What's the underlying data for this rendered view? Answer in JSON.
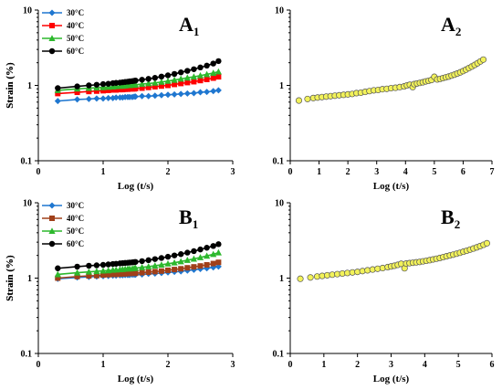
{
  "chart_data": [
    {
      "panel": "A1",
      "label": {
        "main": "A",
        "sub": "1"
      },
      "type": "line",
      "xlabel": "Log (t/s)",
      "ylabel": "Strain (%)",
      "xlim": [
        0,
        3
      ],
      "xticks": [
        0,
        1,
        2,
        3
      ],
      "ylim": [
        0.1,
        10
      ],
      "yscale": "log",
      "yticks": [
        0.1,
        1,
        10
      ],
      "legend": "top-left",
      "x": [
        0.3,
        0.6,
        0.78,
        0.9,
        1.0,
        1.08,
        1.15,
        1.2,
        1.26,
        1.3,
        1.34,
        1.38,
        1.41,
        1.45,
        1.48,
        1.5,
        1.6,
        1.7,
        1.8,
        1.9,
        2.0,
        2.1,
        2.2,
        2.3,
        2.4,
        2.5,
        2.6,
        2.7,
        2.78
      ],
      "series": [
        {
          "name": "30°C",
          "color": "#1f77d0",
          "marker": "diamond",
          "values": [
            0.62,
            0.65,
            0.66,
            0.67,
            0.67,
            0.68,
            0.68,
            0.69,
            0.69,
            0.69,
            0.7,
            0.7,
            0.7,
            0.7,
            0.71,
            0.71,
            0.72,
            0.72,
            0.73,
            0.74,
            0.75,
            0.76,
            0.77,
            0.78,
            0.79,
            0.81,
            0.82,
            0.84,
            0.86
          ]
        },
        {
          "name": "40°C",
          "color": "#ff0000",
          "marker": "square",
          "values": [
            0.78,
            0.81,
            0.83,
            0.84,
            0.85,
            0.86,
            0.87,
            0.87,
            0.88,
            0.88,
            0.89,
            0.89,
            0.9,
            0.9,
            0.9,
            0.91,
            0.92,
            0.94,
            0.96,
            0.98,
            1.0,
            1.03,
            1.06,
            1.09,
            1.12,
            1.16,
            1.2,
            1.25,
            1.3
          ]
        },
        {
          "name": "50°C",
          "color": "#2db82d",
          "marker": "triangle",
          "values": [
            0.86,
            0.9,
            0.92,
            0.93,
            0.94,
            0.95,
            0.96,
            0.97,
            0.98,
            0.98,
            0.99,
            1.0,
            1.0,
            1.01,
            1.01,
            1.02,
            1.04,
            1.06,
            1.08,
            1.11,
            1.14,
            1.18,
            1.22,
            1.26,
            1.3,
            1.35,
            1.4,
            1.46,
            1.52
          ]
        },
        {
          "name": "60°C",
          "color": "#000000",
          "marker": "circle",
          "values": [
            0.92,
            0.97,
            1.0,
            1.02,
            1.04,
            1.05,
            1.07,
            1.08,
            1.09,
            1.1,
            1.11,
            1.12,
            1.13,
            1.14,
            1.15,
            1.16,
            1.19,
            1.22,
            1.26,
            1.31,
            1.36,
            1.42,
            1.49,
            1.56,
            1.64,
            1.73,
            1.83,
            1.95,
            2.1
          ]
        }
      ]
    },
    {
      "panel": "A2",
      "label": {
        "main": "A",
        "sub": "2"
      },
      "type": "scatter",
      "xlabel": "Log (t/s)",
      "ylabel": "Strain (%)",
      "xlim": [
        0,
        7
      ],
      "xticks": [
        0,
        1,
        2,
        3,
        4,
        5,
        6,
        7
      ],
      "ylim": [
        0.1,
        10
      ],
      "yscale": "log",
      "yticks": [
        0.1,
        1,
        10
      ],
      "points": {
        "x": [
          0.3,
          0.6,
          0.8,
          0.95,
          1.1,
          1.25,
          1.4,
          1.55,
          1.7,
          1.85,
          2.0,
          2.15,
          2.3,
          2.45,
          2.6,
          2.75,
          2.9,
          3.05,
          3.2,
          3.35,
          3.5,
          3.65,
          3.8,
          3.95,
          4.05,
          4.15,
          4.25,
          4.3,
          4.4,
          4.5,
          4.6,
          4.7,
          4.8,
          4.9,
          5.0,
          5.1,
          5.2,
          5.3,
          5.4,
          5.5,
          5.6,
          5.7,
          5.8,
          5.9,
          6.0,
          6.1,
          6.2,
          6.3,
          6.4,
          6.5,
          6.6,
          6.7
        ],
        "y": [
          0.63,
          0.66,
          0.68,
          0.69,
          0.7,
          0.71,
          0.72,
          0.73,
          0.74,
          0.75,
          0.76,
          0.77,
          0.79,
          0.8,
          0.82,
          0.84,
          0.86,
          0.87,
          0.89,
          0.9,
          0.92,
          0.93,
          0.95,
          0.97,
          1.0,
          1.02,
          0.95,
          1.04,
          1.06,
          1.08,
          1.1,
          1.13,
          1.15,
          1.18,
          1.3,
          1.2,
          1.22,
          1.25,
          1.28,
          1.31,
          1.35,
          1.39,
          1.44,
          1.49,
          1.55,
          1.62,
          1.7,
          1.78,
          1.87,
          1.97,
          2.08,
          2.2
        ]
      },
      "marker_color": "#f2f25a"
    },
    {
      "panel": "B1",
      "label": {
        "main": "B",
        "sub": "1"
      },
      "type": "line",
      "xlabel": "Log (t/s)",
      "ylabel": "Strain (%)",
      "xlim": [
        0,
        3
      ],
      "xticks": [
        0,
        1,
        2,
        3
      ],
      "ylim": [
        0.1,
        10
      ],
      "yscale": "log",
      "yticks": [
        0.1,
        1,
        10
      ],
      "legend": "top-left",
      "x": [
        0.3,
        0.6,
        0.78,
        0.9,
        1.0,
        1.08,
        1.15,
        1.2,
        1.26,
        1.3,
        1.34,
        1.38,
        1.41,
        1.45,
        1.48,
        1.5,
        1.6,
        1.7,
        1.8,
        1.9,
        2.0,
        2.1,
        2.2,
        2.3,
        2.4,
        2.5,
        2.6,
        2.7,
        2.78
      ],
      "series": [
        {
          "name": "30°C",
          "color": "#1f77d0",
          "marker": "diamond",
          "values": [
            0.98,
            1.02,
            1.04,
            1.05,
            1.06,
            1.07,
            1.08,
            1.08,
            1.09,
            1.09,
            1.1,
            1.1,
            1.1,
            1.11,
            1.11,
            1.11,
            1.12,
            1.14,
            1.15,
            1.17,
            1.19,
            1.21,
            1.23,
            1.26,
            1.29,
            1.32,
            1.35,
            1.39,
            1.42
          ]
        },
        {
          "name": "40°C",
          "color": "#a0401a",
          "marker": "square",
          "values": [
            1.0,
            1.05,
            1.07,
            1.08,
            1.1,
            1.11,
            1.12,
            1.12,
            1.13,
            1.14,
            1.14,
            1.15,
            1.15,
            1.16,
            1.16,
            1.16,
            1.18,
            1.2,
            1.22,
            1.24,
            1.27,
            1.3,
            1.33,
            1.37,
            1.41,
            1.45,
            1.5,
            1.56,
            1.62
          ]
        },
        {
          "name": "50°C",
          "color": "#2db82d",
          "marker": "triangle",
          "values": [
            1.12,
            1.18,
            1.21,
            1.23,
            1.25,
            1.26,
            1.28,
            1.29,
            1.3,
            1.31,
            1.32,
            1.33,
            1.33,
            1.34,
            1.35,
            1.36,
            1.39,
            1.42,
            1.46,
            1.5,
            1.55,
            1.6,
            1.66,
            1.73,
            1.8,
            1.88,
            1.97,
            2.07,
            2.18
          ]
        },
        {
          "name": "60°C",
          "color": "#000000",
          "marker": "circle",
          "values": [
            1.35,
            1.42,
            1.46,
            1.48,
            1.5,
            1.52,
            1.54,
            1.55,
            1.57,
            1.58,
            1.59,
            1.6,
            1.61,
            1.62,
            1.63,
            1.64,
            1.68,
            1.73,
            1.79,
            1.85,
            1.92,
            2.0,
            2.08,
            2.18,
            2.28,
            2.4,
            2.53,
            2.67,
            2.82
          ]
        }
      ]
    },
    {
      "panel": "B2",
      "label": {
        "main": "B",
        "sub": "2"
      },
      "type": "scatter",
      "xlabel": "Log (t/s)",
      "ylabel": "Strain (%)",
      "xlim": [
        0,
        6
      ],
      "xticks": [
        0,
        1,
        2,
        3,
        4,
        5,
        6
      ],
      "ylim": [
        0.1,
        10
      ],
      "yscale": "log",
      "yticks": [
        0.1,
        1,
        10
      ],
      "points": {
        "x": [
          0.3,
          0.6,
          0.8,
          0.95,
          1.1,
          1.25,
          1.4,
          1.55,
          1.7,
          1.85,
          2.0,
          2.15,
          2.3,
          2.45,
          2.6,
          2.75,
          2.9,
          3.0,
          3.1,
          3.2,
          3.3,
          3.4,
          3.45,
          3.55,
          3.65,
          3.75,
          3.85,
          3.95,
          4.05,
          4.15,
          4.25,
          4.35,
          4.45,
          4.55,
          4.65,
          4.75,
          4.85,
          4.95,
          5.05,
          5.15,
          5.25,
          5.35,
          5.45,
          5.55,
          5.65,
          5.75,
          5.85
        ],
        "y": [
          0.98,
          1.02,
          1.05,
          1.07,
          1.09,
          1.11,
          1.13,
          1.15,
          1.17,
          1.19,
          1.21,
          1.24,
          1.27,
          1.3,
          1.33,
          1.36,
          1.4,
          1.43,
          1.46,
          1.5,
          1.55,
          1.35,
          1.56,
          1.58,
          1.6,
          1.62,
          1.64,
          1.67,
          1.7,
          1.73,
          1.77,
          1.81,
          1.85,
          1.9,
          1.95,
          2.0,
          2.05,
          2.11,
          2.17,
          2.24,
          2.31,
          2.39,
          2.47,
          2.56,
          2.66,
          2.77,
          2.9
        ]
      },
      "marker_color": "#f2f25a"
    }
  ]
}
